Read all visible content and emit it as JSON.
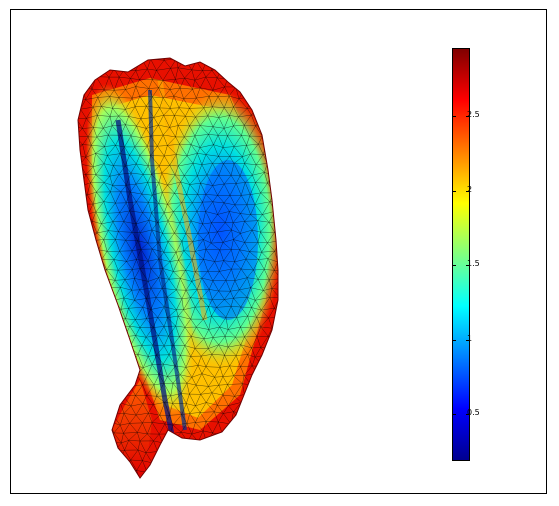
{
  "figure": {
    "colormap": "jet",
    "colormap_colors": [
      "#00008f",
      "#0000ff",
      "#0080ff",
      "#00ffff",
      "#80ff80",
      "#ffff00",
      "#ff8000",
      "#ff0000",
      "#800000"
    ],
    "mesh_edge_color": "#000000",
    "background": "#ffffff"
  },
  "colorbar": {
    "min": 0.18,
    "max": 2.95,
    "ticks": [
      {
        "value": 0.5,
        "label": "0.5"
      },
      {
        "value": 1,
        "label": "1"
      },
      {
        "value": 1.5,
        "label": "1.5"
      },
      {
        "value": 2,
        "label": "2"
      },
      {
        "value": 2.5,
        "label": "2.5"
      }
    ]
  }
}
